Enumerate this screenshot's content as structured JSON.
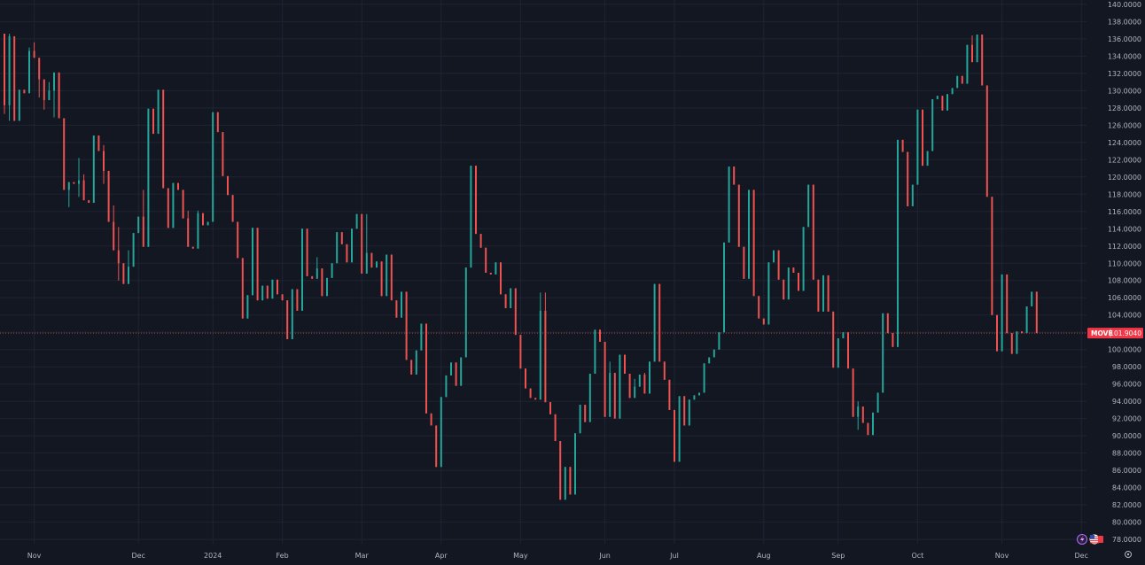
{
  "colors": {
    "background": "#131722",
    "grid": "#1f2433",
    "up": "#26a69a",
    "down": "#ef5350",
    "axis_text": "#b2b5be",
    "price_line": "#ef5350",
    "badge_bg": "#f23645",
    "badge_text": "#ffffff"
  },
  "icons": {
    "bottom_left": "lightning-icon",
    "bottom_flag": "us-flag-icon",
    "settings": "gear-icon"
  },
  "chart_data": {
    "type": "candlestick",
    "title": "",
    "symbol": "MOVE",
    "last_price_label": "101.9040",
    "last_price": 101.904,
    "ylim": [
      77.5,
      140.5
    ],
    "y_ticks": [
      78,
      80,
      82,
      84,
      86,
      88,
      90,
      92,
      94,
      96,
      98,
      100,
      102,
      104,
      106,
      108,
      110,
      112,
      114,
      116,
      118,
      120,
      122,
      124,
      126,
      128,
      130,
      132,
      134,
      136,
      138,
      140
    ],
    "x_ticks": [
      {
        "label": "Nov",
        "bar": 6
      },
      {
        "label": "Dec",
        "bar": 27
      },
      {
        "label": "2024",
        "bar": 42
      },
      {
        "label": "Feb",
        "bar": 56
      },
      {
        "label": "Mar",
        "bar": 72
      },
      {
        "label": "Apr",
        "bar": 88
      },
      {
        "label": "May",
        "bar": 104
      },
      {
        "label": "Jun",
        "bar": 121
      },
      {
        "label": "Jul",
        "bar": 135
      },
      {
        "label": "Aug",
        "bar": 153
      },
      {
        "label": "Sep",
        "bar": 168
      },
      {
        "label": "Oct",
        "bar": 184
      },
      {
        "label": "Nov",
        "bar": 201
      },
      {
        "label": "Dec",
        "bar": 217
      }
    ],
    "candles": [
      [
        136.6,
        136.6,
        127.3,
        128.3
      ],
      [
        128.3,
        136.6,
        126.5,
        136.3
      ],
      [
        136.3,
        136.3,
        126.5,
        126.5
      ],
      [
        126.5,
        130.1,
        126.5,
        130.1
      ],
      [
        130.1,
        130.1,
        129.7,
        129.7
      ],
      [
        129.7,
        135.0,
        129.7,
        134.6
      ],
      [
        134.6,
        135.6,
        133.8,
        133.8
      ],
      [
        133.8,
        133.8,
        129.2,
        131.3
      ],
      [
        131.3,
        131.3,
        127.8,
        128.9
      ],
      [
        128.9,
        131.0,
        128.9,
        130.0
      ],
      [
        130.0,
        132.1,
        126.9,
        132.1
      ],
      [
        132.1,
        132.1,
        126.8,
        126.8
      ],
      [
        126.8,
        126.8,
        118.5,
        118.5
      ],
      [
        118.5,
        119.4,
        116.5,
        119.4
      ],
      [
        119.4,
        119.4,
        119.2,
        119.2
      ],
      [
        119.2,
        122.2,
        117.7,
        119.6
      ],
      [
        119.6,
        120.3,
        117.3,
        117.3
      ],
      [
        117.3,
        117.3,
        117.0,
        117.0
      ],
      [
        117.0,
        124.8,
        117.0,
        124.8
      ],
      [
        124.8,
        124.8,
        123.0,
        123.0
      ],
      [
        123.0,
        123.7,
        119.2,
        120.7
      ],
      [
        120.7,
        120.7,
        114.8,
        114.8
      ],
      [
        114.8,
        116.7,
        111.5,
        111.5
      ],
      [
        111.5,
        114.2,
        108.0,
        110.0
      ],
      [
        110.0,
        110.0,
        107.6,
        107.6
      ],
      [
        107.6,
        111.5,
        107.6,
        109.6
      ],
      [
        109.6,
        113.5,
        109.6,
        113.5
      ],
      [
        113.5,
        115.4,
        113.5,
        115.4
      ],
      [
        115.4,
        118.5,
        111.9,
        111.9
      ],
      [
        111.9,
        127.9,
        111.9,
        127.9
      ],
      [
        127.9,
        127.9,
        125.0,
        125.0
      ],
      [
        125.0,
        130.1,
        125.0,
        130.1
      ],
      [
        130.1,
        130.1,
        118.7,
        118.7
      ],
      [
        118.7,
        118.7,
        114.1,
        114.1
      ],
      [
        114.1,
        119.3,
        114.1,
        119.3
      ],
      [
        119.3,
        119.3,
        118.5,
        118.5
      ],
      [
        118.5,
        118.5,
        115.2,
        115.2
      ],
      [
        115.2,
        116.1,
        111.9,
        111.9
      ],
      [
        111.9,
        111.9,
        111.7,
        111.7
      ],
      [
        111.7,
        116.1,
        111.7,
        115.8
      ],
      [
        115.8,
        115.8,
        114.4,
        114.4
      ],
      [
        114.4,
        114.8,
        114.4,
        114.8
      ],
      [
        114.8,
        127.5,
        114.8,
        127.5
      ],
      [
        127.5,
        127.5,
        125.2,
        125.2
      ],
      [
        125.2,
        125.2,
        120.1,
        120.1
      ],
      [
        120.1,
        120.1,
        117.9,
        117.9
      ],
      [
        117.9,
        117.9,
        114.8,
        114.8
      ],
      [
        114.8,
        114.8,
        110.6,
        110.6
      ],
      [
        110.6,
        110.6,
        103.6,
        103.6
      ],
      [
        103.6,
        106.3,
        103.6,
        106.3
      ],
      [
        106.3,
        114.1,
        106.3,
        114.1
      ],
      [
        114.1,
        114.1,
        105.7,
        105.7
      ],
      [
        105.7,
        107.4,
        105.7,
        107.4
      ],
      [
        107.4,
        107.4,
        105.9,
        105.9
      ],
      [
        105.9,
        108.1,
        105.9,
        108.1
      ],
      [
        108.1,
        108.1,
        106.4,
        106.4
      ],
      [
        106.4,
        106.4,
        105.7,
        105.7
      ],
      [
        105.7,
        105.7,
        101.2,
        101.2
      ],
      [
        101.2,
        107.0,
        101.2,
        107.0
      ],
      [
        107.0,
        107.0,
        104.5,
        104.5
      ],
      [
        104.5,
        114.0,
        104.5,
        114.0
      ],
      [
        114.0,
        114.0,
        108.5,
        108.5
      ],
      [
        108.5,
        108.5,
        108.2,
        108.2
      ],
      [
        108.2,
        110.7,
        108.2,
        109.4
      ],
      [
        109.4,
        109.4,
        106.2,
        106.2
      ],
      [
        106.2,
        108.3,
        106.2,
        108.3
      ],
      [
        108.3,
        110.0,
        108.3,
        110.0
      ],
      [
        110.0,
        113.6,
        110.0,
        113.6
      ],
      [
        113.6,
        113.6,
        112.2,
        112.2
      ],
      [
        112.2,
        112.2,
        110.1,
        110.1
      ],
      [
        110.1,
        114.0,
        110.1,
        114.0
      ],
      [
        114.0,
        115.7,
        114.0,
        115.7
      ],
      [
        115.7,
        115.7,
        108.8,
        108.8
      ],
      [
        108.8,
        115.7,
        108.8,
        111.2
      ],
      [
        111.2,
        111.2,
        109.5,
        109.5
      ],
      [
        109.5,
        110.2,
        109.5,
        110.2
      ],
      [
        110.2,
        110.2,
        106.2,
        106.2
      ],
      [
        106.2,
        111.0,
        106.2,
        111.0
      ],
      [
        111.0,
        111.0,
        105.7,
        105.7
      ],
      [
        105.7,
        105.7,
        103.7,
        103.7
      ],
      [
        103.7,
        106.7,
        103.7,
        106.7
      ],
      [
        106.7,
        106.7,
        98.8,
        98.8
      ],
      [
        98.8,
        98.8,
        97.1,
        97.1
      ],
      [
        97.1,
        99.9,
        97.1,
        99.9
      ],
      [
        99.9,
        103.0,
        99.9,
        103.0
      ],
      [
        103.0,
        103.0,
        92.6,
        92.6
      ],
      [
        92.6,
        92.6,
        91.2,
        91.2
      ],
      [
        91.2,
        91.2,
        86.4,
        86.4
      ],
      [
        86.4,
        94.5,
        86.4,
        94.5
      ],
      [
        94.5,
        97.0,
        94.5,
        97.0
      ],
      [
        97.0,
        98.5,
        97.0,
        98.5
      ],
      [
        98.5,
        98.5,
        95.8,
        95.8
      ],
      [
        95.8,
        99.1,
        95.8,
        99.1
      ],
      [
        99.1,
        109.5,
        99.1,
        109.5
      ],
      [
        109.5,
        121.3,
        109.5,
        121.3
      ],
      [
        121.3,
        121.3,
        113.4,
        113.4
      ],
      [
        113.4,
        113.4,
        111.8,
        111.8
      ],
      [
        111.8,
        111.8,
        108.9,
        108.9
      ],
      [
        108.9,
        108.9,
        108.7,
        108.7
      ],
      [
        108.7,
        110.1,
        108.7,
        110.1
      ],
      [
        110.1,
        110.1,
        106.4,
        106.4
      ],
      [
        106.4,
        106.4,
        104.8,
        104.8
      ],
      [
        104.8,
        107.1,
        104.8,
        107.1
      ],
      [
        107.1,
        107.1,
        101.7,
        101.7
      ],
      [
        101.7,
        101.7,
        97.8,
        97.8
      ],
      [
        97.8,
        97.8,
        95.5,
        95.5
      ],
      [
        95.5,
        95.5,
        94.4,
        94.4
      ],
      [
        94.4,
        94.4,
        94.2,
        94.2
      ],
      [
        94.2,
        106.6,
        94.2,
        104.5
      ],
      [
        104.5,
        106.6,
        93.9,
        93.9
      ],
      [
        93.9,
        93.9,
        92.5,
        92.5
      ],
      [
        92.5,
        92.5,
        89.4,
        89.4
      ],
      [
        89.4,
        89.4,
        82.6,
        82.6
      ],
      [
        82.6,
        86.4,
        82.6,
        86.4
      ],
      [
        86.4,
        86.4,
        83.2,
        83.2
      ],
      [
        83.2,
        90.3,
        83.2,
        90.3
      ],
      [
        90.3,
        93.6,
        90.3,
        93.6
      ],
      [
        93.6,
        93.6,
        91.6,
        91.6
      ],
      [
        91.6,
        97.2,
        91.6,
        97.2
      ],
      [
        97.2,
        102.3,
        97.2,
        102.3
      ],
      [
        102.3,
        102.3,
        100.9,
        100.9
      ],
      [
        100.9,
        100.9,
        92.2,
        92.2
      ],
      [
        92.2,
        98.6,
        92.2,
        97.3
      ],
      [
        97.3,
        97.3,
        92.0,
        92.0
      ],
      [
        92.0,
        99.4,
        92.0,
        99.4
      ],
      [
        99.4,
        99.4,
        97.2,
        97.2
      ],
      [
        97.2,
        97.2,
        94.4,
        94.4
      ],
      [
        94.4,
        96.6,
        94.4,
        95.7
      ],
      [
        95.7,
        97.1,
        95.7,
        97.1
      ],
      [
        97.1,
        97.3,
        94.9,
        94.9
      ],
      [
        94.9,
        98.6,
        94.9,
        98.6
      ],
      [
        98.6,
        107.6,
        98.6,
        107.6
      ],
      [
        107.6,
        107.6,
        98.6,
        98.6
      ],
      [
        98.6,
        98.6,
        96.5,
        96.5
      ],
      [
        96.5,
        96.5,
        93.0,
        93.0
      ],
      [
        93.0,
        93.0,
        87.0,
        87.0
      ],
      [
        87.0,
        94.6,
        87.0,
        94.6
      ],
      [
        94.6,
        94.6,
        91.2,
        91.2
      ],
      [
        91.2,
        94.2,
        91.2,
        94.2
      ],
      [
        94.2,
        94.7,
        94.2,
        94.7
      ],
      [
        94.7,
        95.0,
        94.7,
        95.0
      ],
      [
        95.0,
        98.4,
        95.0,
        98.4
      ],
      [
        98.4,
        99.1,
        98.4,
        99.1
      ],
      [
        99.1,
        100.0,
        99.1,
        100.0
      ],
      [
        100.0,
        102.0,
        100.0,
        102.0
      ],
      [
        102.0,
        112.4,
        102.0,
        112.4
      ],
      [
        112.4,
        121.2,
        112.4,
        121.2
      ],
      [
        121.2,
        121.2,
        119.1,
        119.1
      ],
      [
        119.1,
        119.1,
        111.9,
        111.9
      ],
      [
        111.9,
        111.9,
        108.2,
        108.2
      ],
      [
        108.2,
        118.5,
        108.2,
        118.5
      ],
      [
        118.5,
        118.5,
        106.2,
        106.2
      ],
      [
        106.2,
        106.2,
        103.6,
        103.6
      ],
      [
        103.6,
        103.6,
        102.9,
        102.9
      ],
      [
        102.9,
        110.1,
        102.9,
        110.1
      ],
      [
        110.1,
        111.5,
        110.1,
        111.5
      ],
      [
        111.5,
        111.5,
        108.1,
        108.1
      ],
      [
        108.1,
        108.1,
        105.8,
        105.8
      ],
      [
        105.8,
        109.5,
        105.8,
        109.5
      ],
      [
        109.5,
        109.5,
        108.9,
        108.9
      ],
      [
        108.9,
        108.9,
        106.8,
        106.8
      ],
      [
        106.8,
        114.2,
        106.8,
        114.2
      ],
      [
        114.2,
        119.1,
        114.2,
        119.1
      ],
      [
        119.1,
        119.1,
        108.1,
        108.1
      ],
      [
        108.1,
        108.1,
        104.4,
        104.4
      ],
      [
        104.4,
        108.6,
        104.4,
        108.6
      ],
      [
        108.6,
        108.6,
        104.4,
        104.4
      ],
      [
        104.4,
        104.4,
        97.9,
        97.9
      ],
      [
        97.9,
        101.3,
        97.9,
        101.3
      ],
      [
        101.3,
        102.0,
        101.3,
        102.0
      ],
      [
        102.0,
        102.0,
        97.8,
        97.8
      ],
      [
        97.8,
        97.8,
        92.2,
        92.2
      ],
      [
        92.2,
        94.0,
        90.7,
        93.4
      ],
      [
        93.4,
        93.4,
        91.5,
        91.5
      ],
      [
        91.5,
        91.5,
        90.1,
        90.1
      ],
      [
        90.1,
        92.7,
        90.1,
        92.7
      ],
      [
        92.7,
        95.0,
        92.7,
        95.0
      ],
      [
        95.0,
        104.2,
        95.0,
        104.2
      ],
      [
        104.2,
        104.2,
        101.9,
        101.9
      ],
      [
        101.9,
        101.9,
        100.3,
        100.3
      ],
      [
        100.3,
        124.3,
        100.3,
        124.3
      ],
      [
        124.3,
        124.3,
        122.9,
        122.9
      ],
      [
        122.9,
        122.9,
        116.6,
        116.6
      ],
      [
        116.6,
        119.1,
        116.6,
        119.1
      ],
      [
        119.1,
        127.8,
        119.1,
        127.8
      ],
      [
        127.8,
        127.8,
        121.3,
        121.3
      ],
      [
        121.3,
        123.0,
        121.3,
        123.0
      ],
      [
        123.0,
        129.0,
        123.0,
        129.0
      ],
      [
        129.0,
        129.4,
        129.0,
        129.4
      ],
      [
        129.4,
        129.4,
        127.7,
        127.7
      ],
      [
        127.7,
        129.6,
        127.7,
        129.6
      ],
      [
        129.6,
        130.3,
        129.6,
        130.3
      ],
      [
        130.3,
        131.7,
        130.3,
        131.7
      ],
      [
        131.7,
        131.7,
        130.8,
        130.8
      ],
      [
        130.8,
        135.3,
        130.8,
        135.3
      ],
      [
        135.3,
        136.4,
        133.3,
        133.3
      ],
      [
        133.3,
        136.5,
        133.3,
        136.5
      ],
      [
        136.5,
        136.5,
        130.6,
        130.6
      ],
      [
        130.6,
        130.6,
        117.7,
        117.7
      ],
      [
        117.7,
        117.7,
        104.0,
        104.0
      ],
      [
        104.0,
        104.0,
        99.8,
        99.8
      ],
      [
        99.8,
        108.7,
        99.8,
        108.7
      ],
      [
        108.7,
        108.7,
        101.9,
        101.9
      ],
      [
        101.9,
        101.9,
        99.5,
        99.5
      ],
      [
        99.5,
        102.1,
        99.5,
        102.1
      ],
      [
        102.1,
        102.1,
        101.9,
        101.9
      ],
      [
        101.9,
        105.0,
        101.9,
        105.0
      ],
      [
        105.0,
        106.7,
        105.0,
        106.7
      ],
      [
        106.7,
        106.7,
        101.9,
        101.9
      ]
    ]
  }
}
